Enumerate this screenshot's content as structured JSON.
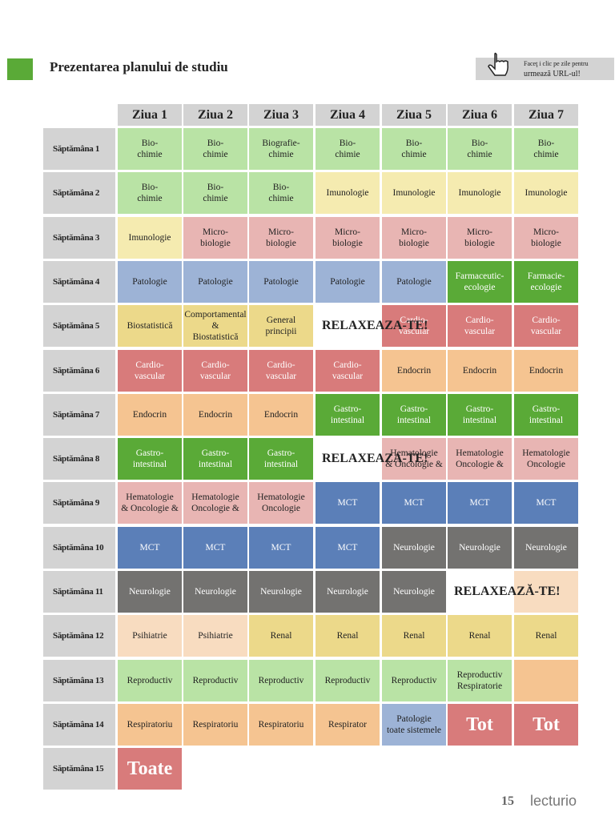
{
  "header": {
    "title": "Prezentarea planului de studiu",
    "hint": [
      "Faceţ i clic pe zile pentru",
      "urmează URL-ul!"
    ]
  },
  "table": {
    "days": [
      "Ziua 1",
      "Ziua 2",
      "Ziua 3",
      "Ziua 4",
      "Ziua 5",
      "Ziua 6",
      "Ziua 7"
    ],
    "rows": [
      {
        "label": "Săptămâna 1",
        "cells": [
          {
            "text": "Bio-\nchimie",
            "color": "#b9e3a5"
          },
          {
            "text": "Bio-\nchimie",
            "color": "#b9e3a5"
          },
          {
            "text": "Biografie-\nchimie",
            "color": "#b9e3a5"
          },
          {
            "text": "Bio-\nchimie",
            "color": "#b9e3a5"
          },
          {
            "text": "Bio-\nchimie",
            "color": "#b9e3a5"
          },
          {
            "text": "Bio-\nchimie",
            "color": "#b9e3a5"
          },
          {
            "text": "Bio-\nchimie",
            "color": "#b9e3a5"
          }
        ]
      },
      {
        "label": "Săptămâna 2",
        "cells": [
          {
            "text": "Bio-\nchimie",
            "color": "#b9e3a5"
          },
          {
            "text": "Bio-\nchimie",
            "color": "#b9e3a5"
          },
          {
            "text": "Bio-\nchimie",
            "color": "#b9e3a5"
          },
          {
            "text": "Imunologie",
            "color": "#f5ebb0"
          },
          {
            "text": "Imunologie",
            "color": "#f5ebb0"
          },
          {
            "text": "Imunologie",
            "color": "#f5ebb0"
          },
          {
            "text": "Imunologie",
            "color": "#f5ebb0"
          }
        ]
      },
      {
        "label": "Săptămâna 3",
        "cells": [
          {
            "text": "Imunologie",
            "color": "#f5ebb0"
          },
          {
            "text": "Micro-\nbiologie",
            "color": "#e8b5b3"
          },
          {
            "text": "Micro-\nbiologie",
            "color": "#e8b5b3"
          },
          {
            "text": "Micro-\nbiologie",
            "color": "#e8b5b3"
          },
          {
            "text": "Micro-\nbiologie",
            "color": "#e8b5b3"
          },
          {
            "text": "Micro-\nbiologie",
            "color": "#e8b5b3"
          },
          {
            "text": "Micro-\nbiologie",
            "color": "#e8b5b3"
          }
        ]
      },
      {
        "label": "Săptămâna 4",
        "cells": [
          {
            "text": "Patologie",
            "color": "#9db3d6"
          },
          {
            "text": "Patologie",
            "color": "#9db3d6"
          },
          {
            "text": "Patologie",
            "color": "#9db3d6"
          },
          {
            "text": "Patologie",
            "color": "#9db3d6"
          },
          {
            "text": "Patologie",
            "color": "#9db3d6"
          },
          {
            "text": "Farmaceutic-\necologie",
            "color": "#5aaa37"
          },
          {
            "text": "Farmacie-\necologie",
            "color": "#5aaa37"
          }
        ]
      },
      {
        "label": "Săptămâna 5",
        "cells": [
          {
            "text": "Biostatistică",
            "color": "#ecd98a"
          },
          {
            "text": "Comportamental &\nBiostatistică",
            "color": "#ecd98a"
          },
          {
            "text": "General\nprincipii",
            "color": "#ecd98a"
          },
          {
            "text": "RELAXEAZA-TE!",
            "color": "#ffffff"
          },
          {
            "text": "Cardio-\nvascular",
            "color": "#d87b7b"
          },
          {
            "text": "Cardio-\nvascular",
            "color": "#d87b7b"
          },
          {
            "text": "Cardio-\nvascular",
            "color": "#d87b7b"
          }
        ]
      },
      {
        "label": "Săptămâna 6",
        "cells": [
          {
            "text": "Cardio-\nvascular",
            "color": "#d87b7b"
          },
          {
            "text": "Cardio-\nvascular",
            "color": "#d87b7b"
          },
          {
            "text": "Cardio-\nvascular",
            "color": "#d87b7b"
          },
          {
            "text": "Cardio-\nvascular",
            "color": "#d87b7b"
          },
          {
            "text": "Endocrin",
            "color": "#f5c491"
          },
          {
            "text": "Endocrin",
            "color": "#f5c491"
          },
          {
            "text": "Endocrin",
            "color": "#f5c491"
          }
        ]
      },
      {
        "label": "Săptămâna 7",
        "cells": [
          {
            "text": "Endocrin",
            "color": "#f5c491"
          },
          {
            "text": "Endocrin",
            "color": "#f5c491"
          },
          {
            "text": "Endocrin",
            "color": "#f5c491"
          },
          {
            "text": "Gastro-\nintestinal",
            "color": "#5aaa37"
          },
          {
            "text": "Gastro-\nintestinal",
            "color": "#5aaa37"
          },
          {
            "text": "Gastro-\nintestinal",
            "color": "#5aaa37"
          },
          {
            "text": "Gastro-\nintestinal",
            "color": "#5aaa37"
          }
        ]
      },
      {
        "label": "Săptămâna 8",
        "cells": [
          {
            "text": "Gastro-\nintestinal",
            "color": "#5aaa37"
          },
          {
            "text": "Gastro-\nintestinal",
            "color": "#5aaa37"
          },
          {
            "text": "Gastro-\nintestinal",
            "color": "#5aaa37"
          },
          {
            "text": "RELAXEAZA-TE!",
            "color": "#ffffff"
          },
          {
            "text": "Hematologie\n& Oncologie &",
            "color": "#e8b5b3"
          },
          {
            "text": "Hematologie\nOncologie &",
            "color": "#e8b5b3"
          },
          {
            "text": "Hematologie\nOncologie",
            "color": "#e8b5b3"
          }
        ]
      },
      {
        "label": "Săptămâna 9",
        "cells": [
          {
            "text": "Hematologie\n& Oncologie &",
            "color": "#e8b5b3"
          },
          {
            "text": "Hematologie\nOncologie &",
            "color": "#e8b5b3"
          },
          {
            "text": "Hematologie\nOncologie",
            "color": "#e8b5b3"
          },
          {
            "text": "MCT",
            "color": "#5b7fb8"
          },
          {
            "text": "MCT",
            "color": "#5b7fb8"
          },
          {
            "text": "MCT",
            "color": "#5b7fb8"
          },
          {
            "text": "MCT",
            "color": "#5b7fb8"
          }
        ]
      },
      {
        "label": "Săptămâna 10",
        "cells": [
          {
            "text": "MCT",
            "color": "#5b7fb8"
          },
          {
            "text": "MCT",
            "color": "#5b7fb8"
          },
          {
            "text": "MCT",
            "color": "#5b7fb8"
          },
          {
            "text": "MCT",
            "color": "#5b7fb8"
          },
          {
            "text": "Neurologie",
            "color": "#737270"
          },
          {
            "text": "Neurologie",
            "color": "#737270"
          },
          {
            "text": "Neurologie",
            "color": "#737270"
          }
        ]
      },
      {
        "label": "Săptămâna 11",
        "cells": [
          {
            "text": "Neurologie",
            "color": "#737270"
          },
          {
            "text": "Neurologie",
            "color": "#737270"
          },
          {
            "text": "Neurologie",
            "color": "#737270"
          },
          {
            "text": "Neurologie",
            "color": "#737270"
          },
          {
            "text": "Neurologie",
            "color": "#737270"
          },
          {
            "text": "RELAXEAZĂ-TE!",
            "color": "#ffffff"
          },
          {
            "color": "#f8dcc0"
          }
        ]
      },
      {
        "label": "Săptămâna 12",
        "cells": [
          {
            "text": "Psihiatrie",
            "color": "#f8dcc0"
          },
          {
            "text": "Psihiatrie",
            "color": "#f8dcc0"
          },
          {
            "text": "Renal",
            "color": "#ecd98a"
          },
          {
            "text": "Renal",
            "color": "#ecd98a"
          },
          {
            "text": "Renal",
            "color": "#ecd98a"
          },
          {
            "text": "Renal",
            "color": "#ecd98a"
          },
          {
            "text": "Renal",
            "color": "#ecd98a"
          }
        ]
      },
      {
        "label": "Săptămâna 13",
        "cells": [
          {
            "text": "Reproductiv",
            "color": "#b9e3a5"
          },
          {
            "text": "Reproductiv",
            "color": "#b9e3a5"
          },
          {
            "text": "Reproductiv",
            "color": "#b9e3a5"
          },
          {
            "text": "Reproductiv",
            "color": "#b9e3a5"
          },
          {
            "text": "Reproductiv",
            "color": "#b9e3a5"
          },
          {
            "text": "Reproductiv Respiratorie",
            "color": "#b9e3a5"
          },
          {
            "color": "#f5c491"
          }
        ]
      },
      {
        "label": "Săptămâna 14",
        "cells": [
          {
            "text": "Respiratoriu",
            "color": "#f5c491"
          },
          {
            "text": "Respiratoriu",
            "color": "#f5c491"
          },
          {
            "text": "Respiratoriu",
            "color": "#f5c491"
          },
          {
            "text": "Respirator",
            "color": "#f5c491"
          },
          {
            "text": "Patologie\ntoate sistemele",
            "color": "#9db3d6"
          },
          {
            "text": "Tot",
            "color": "#d87b7b"
          },
          {
            "text": "Tot",
            "color": "#d87b7b"
          }
        ]
      },
      {
        "label": "Săptămâna 15",
        "cells": [
          {
            "text": "Toate",
            "color": "#d87b7b"
          }
        ]
      }
    ]
  },
  "footer": {
    "page": "15",
    "brand": "lecturio"
  }
}
